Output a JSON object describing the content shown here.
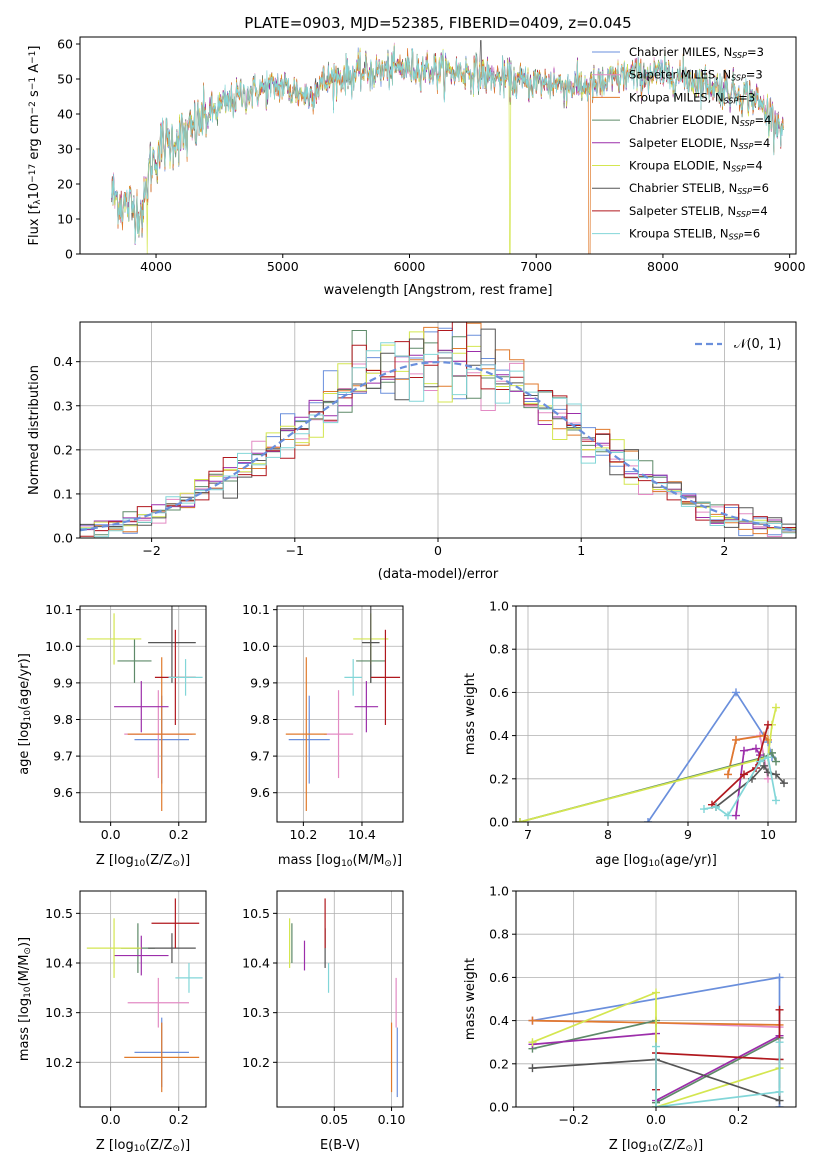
{
  "palette": [
    "#6a8fdc",
    "#e38bc4",
    "#e07a2c",
    "#5e8a69",
    "#9c2eaa",
    "#d4e650",
    "#555555",
    "#b0181e",
    "#82d6d8"
  ],
  "models": [
    {
      "pre": "Chabrier MILES, N",
      "sub": "SSP",
      "post": "=3",
      "color": "#6a8fdc"
    },
    {
      "pre": "Salpeter MILES, N",
      "sub": "SSP",
      "post": "=3",
      "color": "#e38bc4"
    },
    {
      "pre": "Kroupa MILES, N",
      "sub": "SSP",
      "post": "=3",
      "color": "#e07a2c"
    },
    {
      "pre": "Chabrier ELODIE, N",
      "sub": "SSP",
      "post": "=4",
      "color": "#5e8a69"
    },
    {
      "pre": "Salpeter ELODIE, N",
      "sub": "SSP",
      "post": "=4",
      "color": "#9c2eaa"
    },
    {
      "pre": "Kroupa ELODIE, N",
      "sub": "SSP",
      "post": "=4",
      "color": "#d4e650"
    },
    {
      "pre": "Chabrier STELIB, N",
      "sub": "SSP",
      "post": "=6",
      "color": "#555555"
    },
    {
      "pre": "Salpeter STELIB, N",
      "sub": "SSP",
      "post": "=4",
      "color": "#b0181e"
    },
    {
      "pre": "Kroupa STELIB, N",
      "sub": "SSP",
      "post": "=6",
      "color": "#82d6d8"
    }
  ],
  "chart_data": [
    {
      "id": "spectrum",
      "type": "line",
      "title": "PLATE=0903, MJD=52385, FIBERID=0409, z=0.045",
      "xlabel": "wavelength [Angstrom, rest frame]",
      "ylabel": {
        "a": "Flux [f",
        "b": "λ",
        "c": "10",
        "d": "−17",
        "e": " erg cm",
        "f": "−2",
        "g": " s",
        "h": "−1",
        "i": " A",
        "j": "−1",
        "k": "]"
      },
      "xlim": [
        3400,
        9050
      ],
      "ylim": [
        0,
        62
      ],
      "xticks": [
        "4000",
        "5000",
        "6000",
        "7000",
        "8000",
        "9000"
      ],
      "yticks": [
        "0",
        "10",
        "20",
        "30",
        "40",
        "50",
        "60"
      ],
      "x_range_data": [
        3650,
        8950
      ],
      "continuum": [
        [
          3650,
          17
        ],
        [
          3750,
          14
        ],
        [
          3850,
          13
        ],
        [
          3900,
          12
        ],
        [
          3950,
          25
        ],
        [
          4050,
          31
        ],
        [
          4150,
          33
        ],
        [
          4250,
          34
        ],
        [
          4350,
          38
        ],
        [
          4500,
          42
        ],
        [
          4600,
          44
        ],
        [
          4800,
          47
        ],
        [
          5000,
          48
        ],
        [
          5200,
          45
        ],
        [
          5300,
          49
        ],
        [
          5500,
          51
        ],
        [
          5700,
          52
        ],
        [
          5900,
          53
        ],
        [
          6100,
          53
        ],
        [
          6300,
          52
        ],
        [
          6500,
          52
        ],
        [
          6700,
          50
        ],
        [
          6900,
          49
        ],
        [
          7100,
          49
        ],
        [
          7300,
          48
        ],
        [
          7500,
          48
        ],
        [
          7700,
          51
        ],
        [
          7900,
          51
        ],
        [
          8100,
          51
        ],
        [
          8300,
          49
        ],
        [
          8500,
          47
        ],
        [
          8700,
          45
        ],
        [
          8950,
          36
        ]
      ],
      "spikes": [
        [
          3930,
          0
        ],
        [
          3950,
          0
        ],
        [
          6563,
          61
        ],
        [
          6790,
          0
        ],
        [
          7420,
          0
        ]
      ],
      "legend": "upper-right"
    },
    {
      "id": "residuals",
      "type": "histogram",
      "xlabel": "(data-model)/error",
      "ylabel": "Normed distribution",
      "xlim": [
        -2.5,
        2.5
      ],
      "ylim": [
        0,
        0.49
      ],
      "xticks": [
        "−2",
        "−1",
        "0",
        "1",
        "2"
      ],
      "yticks": [
        "0.0",
        "0.1",
        "0.2",
        "0.3",
        "0.4"
      ],
      "bin_width": 0.1,
      "reference": {
        "label": "𝒩(0, 1)",
        "color": "#6a8fdc",
        "style": "dashed"
      },
      "legend": "upper-right"
    },
    {
      "id": "age-vs-Z",
      "type": "scatter",
      "xlabel": {
        "a": "Z [log",
        "b": "10",
        "c": "(Z/Z",
        "d": "⊙",
        "e": ")]"
      },
      "ylabel": {
        "a": "age  [log",
        "b": "10",
        "c": "(age/yr)]"
      },
      "xlim": [
        -0.09,
        0.28
      ],
      "ylim": [
        9.52,
        10.11
      ],
      "xticks": [
        "0.0",
        "0.2"
      ],
      "yticks": [
        "9.6",
        "9.7",
        "9.8",
        "9.9",
        "10.0",
        "10.1"
      ],
      "points": [
        {
          "x": 0.15,
          "y": 9.745,
          "xerr": 0.08,
          "yerr": 0.12
        },
        {
          "x": 0.14,
          "y": 9.76,
          "xerr": 0.1,
          "yerr": 0.12
        },
        {
          "x": 0.15,
          "y": 9.76,
          "xerr": 0.1,
          "yerr": 0.21
        },
        {
          "x": 0.07,
          "y": 9.96,
          "xerr": 0.05,
          "yerr": 0.06
        },
        {
          "x": 0.09,
          "y": 9.835,
          "xerr": 0.08,
          "yerr": 0.07
        },
        {
          "x": 0.01,
          "y": 10.02,
          "xerr": 0.08,
          "yerr": 0.07
        },
        {
          "x": 0.18,
          "y": 10.01,
          "xerr": 0.07,
          "yerr": 0.11
        },
        {
          "x": 0.19,
          "y": 9.915,
          "xerr": 0.06,
          "yerr": 0.13
        },
        {
          "x": 0.22,
          "y": 9.915,
          "xerr": 0.05,
          "yerr": 0.05
        }
      ]
    },
    {
      "id": "age-vs-mass",
      "type": "scatter",
      "xlabel": {
        "a": "mass [log",
        "b": "10",
        "c": "(M/M",
        "d": "⊙",
        "e": ")]"
      },
      "xlim": [
        10.11,
        10.54
      ],
      "ylim": [
        9.52,
        10.11
      ],
      "xticks": [
        "10.2",
        "10.4"
      ],
      "yticks": [
        "9.6",
        "9.7",
        "9.8",
        "9.9",
        "10.0",
        "10.1"
      ],
      "points": [
        {
          "x": 10.22,
          "y": 9.745,
          "xerr": 0.07,
          "yerr": 0.12
        },
        {
          "x": 10.32,
          "y": 9.76,
          "xerr": 0.05,
          "yerr": 0.12
        },
        {
          "x": 10.21,
          "y": 9.76,
          "xerr": 0.07,
          "yerr": 0.21
        },
        {
          "x": 10.43,
          "y": 9.96,
          "xerr": 0.05,
          "yerr": 0.06
        },
        {
          "x": 10.415,
          "y": 9.835,
          "xerr": 0.04,
          "yerr": 0.07
        },
        {
          "x": 10.43,
          "y": 10.02,
          "xerr": 0.06,
          "yerr": 0.07
        },
        {
          "x": 10.43,
          "y": 10.01,
          "xerr": 0.03,
          "yerr": 0.11
        },
        {
          "x": 10.48,
          "y": 9.915,
          "xerr": 0.05,
          "yerr": 0.13
        },
        {
          "x": 10.37,
          "y": 9.915,
          "xerr": 0.03,
          "yerr": 0.05
        }
      ]
    },
    {
      "id": "mass-weight-vs-age",
      "type": "line",
      "xlabel": {
        "a": "age  [log",
        "b": "10",
        "c": "(age/yr)]"
      },
      "ylabel": "mass weight",
      "xlim": [
        6.85,
        10.35
      ],
      "ylim": [
        0,
        1.0
      ],
      "xticks": [
        "7",
        "8",
        "9",
        "10"
      ],
      "yticks": [
        "0.0",
        "0.2",
        "0.4",
        "0.6",
        "0.8",
        "1.0"
      ],
      "series": [
        {
          "x": [
            8.5,
            9.6,
            10.0,
            10.05
          ],
          "y": [
            0.0,
            0.6,
            0.37,
            0.3
          ]
        },
        {
          "x": [
            9.5,
            9.6,
            9.9,
            10.0
          ],
          "y": [
            0.22,
            0.38,
            0.4,
            0.2
          ]
        },
        {
          "x": [
            9.5,
            9.6,
            9.95,
            10.0
          ],
          "y": [
            0.22,
            0.38,
            0.4,
            0.38
          ]
        },
        {
          "x": [
            6.9,
            9.95,
            10.05,
            10.1
          ],
          "y": [
            0.0,
            0.3,
            0.32,
            0.28
          ]
        },
        {
          "x": [
            9.6,
            9.7,
            9.85,
            9.9
          ],
          "y": [
            0.03,
            0.33,
            0.34,
            0.31
          ]
        },
        {
          "x": [
            6.9,
            10.0,
            10.05,
            10.1
          ],
          "y": [
            0.0,
            0.3,
            0.45,
            0.53
          ]
        },
        {
          "x": [
            9.35,
            9.8,
            9.95,
            10.0,
            10.1,
            10.2
          ],
          "y": [
            0.07,
            0.2,
            0.26,
            0.23,
            0.22,
            0.18
          ]
        },
        {
          "x": [
            9.3,
            9.7,
            9.85,
            10.0
          ],
          "y": [
            0.08,
            0.22,
            0.25,
            0.45
          ]
        },
        {
          "x": [
            9.2,
            9.35,
            9.5,
            9.9,
            10.0,
            10.1
          ],
          "y": [
            0.06,
            0.07,
            0.03,
            0.28,
            0.3,
            0.1
          ]
        }
      ]
    },
    {
      "id": "mass-vs-Z",
      "type": "scatter",
      "xlabel": {
        "a": "Z [log",
        "b": "10",
        "c": "(Z/Z",
        "d": "⊙",
        "e": ")]"
      },
      "ylabel": {
        "a": "mass [log",
        "b": "10",
        "c": "(M/M",
        "d": "⊙",
        "e": ")]"
      },
      "xlim": [
        -0.09,
        0.28
      ],
      "ylim": [
        10.11,
        10.545
      ],
      "xticks": [
        "0.0",
        "0.2"
      ],
      "yticks": [
        "10.2",
        "10.3",
        "10.4",
        "10.5"
      ],
      "points": [
        {
          "x": 0.15,
          "y": 10.22,
          "xerr": 0.08,
          "yerr": 0.07
        },
        {
          "x": 0.14,
          "y": 10.32,
          "xerr": 0.09,
          "yerr": 0.05
        },
        {
          "x": 0.15,
          "y": 10.21,
          "xerr": 0.11,
          "yerr": 0.07
        },
        {
          "x": 0.08,
          "y": 10.43,
          "xerr": 0.05,
          "yerr": 0.05
        },
        {
          "x": 0.09,
          "y": 10.415,
          "xerr": 0.08,
          "yerr": 0.04
        },
        {
          "x": 0.01,
          "y": 10.43,
          "xerr": 0.08,
          "yerr": 0.06
        },
        {
          "x": 0.18,
          "y": 10.43,
          "xerr": 0.07,
          "yerr": 0.03
        },
        {
          "x": 0.19,
          "y": 10.48,
          "xerr": 0.07,
          "yerr": 0.05
        },
        {
          "x": 0.23,
          "y": 10.37,
          "xerr": 0.04,
          "yerr": 0.03
        }
      ]
    },
    {
      "id": "mass-vs-EBV",
      "type": "scatter",
      "xlabel": "E(B-V)",
      "xlim": [
        0.0,
        0.11
      ],
      "ylim": [
        10.11,
        10.545
      ],
      "xticks": [
        "0.05",
        "0.10"
      ],
      "yticks": [
        "10.2",
        "10.3",
        "10.4",
        "10.5"
      ],
      "points": [
        {
          "x": 0.105,
          "y": 10.2,
          "xerr": 0,
          "yerr": 0.07
        },
        {
          "x": 0.104,
          "y": 10.32,
          "xerr": 0,
          "yerr": 0.05
        },
        {
          "x": 0.1,
          "y": 10.21,
          "xerr": 0,
          "yerr": 0.07
        },
        {
          "x": 0.013,
          "y": 10.44,
          "xerr": 0,
          "yerr": 0.04
        },
        {
          "x": 0.024,
          "y": 10.415,
          "xerr": 0,
          "yerr": 0.03
        },
        {
          "x": 0.011,
          "y": 10.44,
          "xerr": 0,
          "yerr": 0.05
        },
        {
          "x": 0.042,
          "y": 10.43,
          "xerr": 0,
          "yerr": 0.04
        },
        {
          "x": 0.042,
          "y": 10.48,
          "xerr": 0,
          "yerr": 0.05
        },
        {
          "x": 0.045,
          "y": 10.37,
          "xerr": 0,
          "yerr": 0.03
        }
      ]
    },
    {
      "id": "mass-weight-vs-Z",
      "type": "line",
      "xlabel": {
        "a": "Z [log",
        "b": "10",
        "c": "(Z/Z",
        "d": "⊙",
        "e": ")]"
      },
      "ylabel": "mass weight",
      "xlim": [
        -0.34,
        0.34
      ],
      "ylim": [
        0,
        1.0
      ],
      "xticks": [
        "−0.2",
        "0.0",
        "0.2"
      ],
      "yticks": [
        "0.0",
        "0.2",
        "0.4",
        "0.6",
        "0.8",
        "1.0"
      ],
      "series": [
        {
          "x": [
            -0.3,
            0.3,
            0.3
          ],
          "y": [
            0.4,
            0.6,
            0.0
          ]
        },
        {
          "x": [
            -0.3,
            0.0,
            0.3
          ],
          "y": [
            0.4,
            0.39,
            0.37
          ]
        },
        {
          "x": [
            -0.3,
            0.0,
            0.3
          ],
          "y": [
            0.4,
            0.39,
            0.38
          ]
        },
        {
          "x": [
            -0.3,
            0.0,
            0.0,
            0.3
          ],
          "y": [
            0.27,
            0.4,
            0.02,
            0.32
          ]
        },
        {
          "x": [
            -0.3,
            0.0,
            0.0,
            0.3
          ],
          "y": [
            0.29,
            0.34,
            0.03,
            0.33
          ]
        },
        {
          "x": [
            -0.3,
            0.0,
            0.0,
            0.3
          ],
          "y": [
            0.3,
            0.53,
            0.0,
            0.18
          ]
        },
        {
          "x": [
            -0.3,
            0.0,
            0.3,
            0.3
          ],
          "y": [
            0.18,
            0.22,
            0.03,
            0.22
          ]
        },
        {
          "x": [
            0.0,
            0.0,
            0.3,
            0.3
          ],
          "y": [
            0.08,
            0.25,
            0.22,
            0.45
          ]
        },
        {
          "x": [
            0.0,
            0.0,
            0.3,
            0.3
          ],
          "y": [
            0.28,
            0.0,
            0.07,
            0.3
          ]
        }
      ]
    }
  ]
}
